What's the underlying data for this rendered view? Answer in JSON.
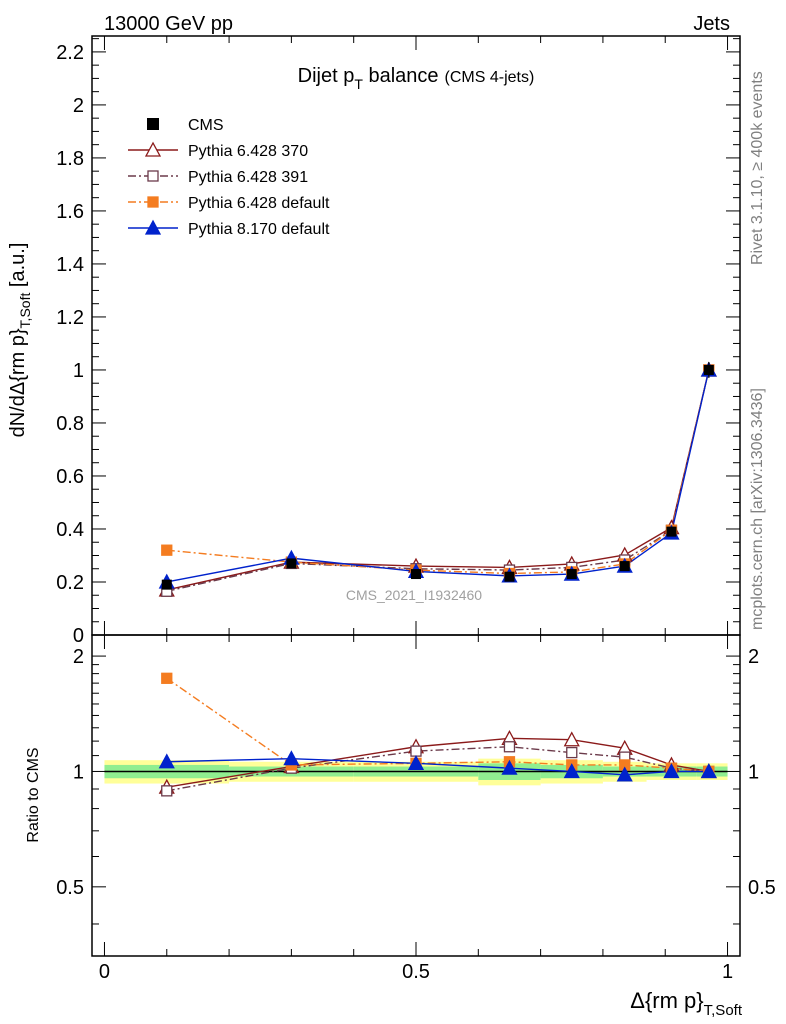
{
  "header": {
    "left": "13000 GeV pp",
    "right": "Jets",
    "side_top": "Rivet 3.1.10, ≥ 400k events",
    "side_bottom": "mcplots.cern.ch [arXiv:1306.3436]",
    "watermark": "CMS_2021_I1932460"
  },
  "chart_data": [
    {
      "type": "line",
      "title": "Dijet p",
      "title_sub": "T",
      "title_rest": " balance",
      "title_note": "(CMS 4-jets)",
      "ylabel": "dN/dΔ{rm p}",
      "ylabel_sub": "T,Soft",
      "ylabel_unit": " [a.u.]",
      "xlim": [
        -0.02,
        1.02
      ],
      "ylim": [
        0,
        2.26
      ],
      "yticks": [
        "0",
        "0.2",
        "0.4",
        "0.6",
        "0.8",
        "1",
        "1.2",
        "1.4",
        "1.6",
        "1.8",
        "2",
        "2.2"
      ],
      "x": [
        0.1,
        0.3,
        0.5,
        0.65,
        0.75,
        0.835,
        0.91,
        0.97
      ],
      "data": {
        "name": "CMS",
        "values": [
          0.19,
          0.27,
          0.23,
          0.22,
          0.23,
          0.26,
          0.39,
          1.0
        ],
        "errors": [
          0.01,
          0.01,
          0.01,
          0.01,
          0.01,
          0.01,
          0.01,
          0.03
        ]
      },
      "series": [
        {
          "name": "Pythia 6.428 370",
          "color": "#8b1a1a",
          "marker": "open-triangle",
          "dash": "solid",
          "values": [
            0.17,
            0.275,
            0.26,
            0.255,
            0.268,
            0.302,
            0.405,
            1.0
          ]
        },
        {
          "name": "Pythia 6.428 391",
          "color": "#6b3a4a",
          "marker": "open-square",
          "dash": "dashdot",
          "values": [
            0.165,
            0.27,
            0.25,
            0.245,
            0.255,
            0.283,
            0.395,
            1.0
          ]
        },
        {
          "name": "Pythia 6.428 default",
          "color": "#f47c20",
          "marker": "filled-square",
          "dash": "dashdot",
          "values": [
            0.32,
            0.275,
            0.245,
            0.232,
            0.238,
            0.268,
            0.395,
            1.0
          ]
        },
        {
          "name": "Pythia 8.170 default",
          "color": "#0022cc",
          "marker": "filled-triangle",
          "dash": "solid",
          "values": [
            0.2,
            0.29,
            0.24,
            0.223,
            0.23,
            0.26,
            0.385,
            1.0
          ]
        }
      ]
    },
    {
      "type": "line",
      "ylabel": "Ratio to CMS",
      "xlabel": "Δ{rm p}",
      "xlabel_sub": "T,Soft",
      "xlim": [
        -0.02,
        1.02
      ],
      "ylim": [
        0.33,
        2.27
      ],
      "yscale": "log",
      "yticks": [
        "0.5",
        "1",
        "2"
      ],
      "xticks": [
        "0",
        "0.5",
        "1"
      ],
      "bands": {
        "x_edges": [
          0.0,
          0.2,
          0.4,
          0.6,
          0.7,
          0.8,
          0.87,
          0.95,
          1.0
        ],
        "inner": [
          0.04,
          0.03,
          0.03,
          0.05,
          0.04,
          0.03,
          0.03,
          0.03
        ],
        "outer": [
          0.07,
          0.06,
          0.06,
          0.08,
          0.07,
          0.06,
          0.05,
          0.05
        ]
      },
      "x": [
        0.1,
        0.3,
        0.5,
        0.65,
        0.75,
        0.835,
        0.91,
        0.97
      ],
      "series": [
        {
          "name": "Pythia 6.428 370",
          "values": [
            0.91,
            1.03,
            1.16,
            1.22,
            1.21,
            1.15,
            1.04,
            1.0
          ]
        },
        {
          "name": "Pythia 6.428 391",
          "values": [
            0.89,
            1.02,
            1.13,
            1.16,
            1.12,
            1.09,
            1.02,
            1.0
          ]
        },
        {
          "name": "Pythia 6.428 default",
          "values": [
            1.75,
            1.04,
            1.05,
            1.06,
            1.04,
            1.04,
            1.02,
            1.0
          ]
        },
        {
          "name": "Pythia 8.170 default",
          "values": [
            1.06,
            1.08,
            1.05,
            1.02,
            1.0,
            0.98,
            1.0,
            1.0
          ],
          "errors": [
            0.03,
            0.03,
            0.02,
            0.03,
            0.03,
            0.03,
            0.02,
            0.01
          ]
        }
      ]
    }
  ]
}
